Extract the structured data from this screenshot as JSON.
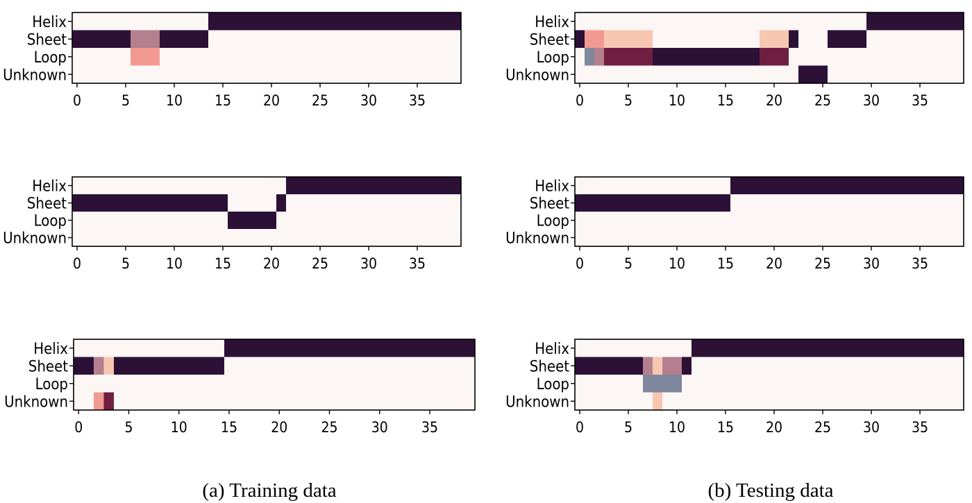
{
  "captions": {
    "left": "(a) Training data",
    "right": "(b) Testing data"
  },
  "colors": {
    "dark": "#2c1036",
    "light": "#fcf6f5",
    "salmon": "#f29a92",
    "peach": "#f7c7b2",
    "mauve": "#b47f8f",
    "slate": "#7f879c",
    "wine": "#701f43",
    "axis": "#000000"
  },
  "chart_data": [
    {
      "type": "heatmap",
      "group": "(a) Training data",
      "ylabels": [
        "Helix",
        "Sheet",
        "Loop",
        "Unknown"
      ],
      "xticks": [
        0,
        5,
        10,
        15,
        20,
        25,
        30,
        35
      ],
      "xlim": [
        -0.5,
        39.5
      ],
      "n_positions": 40,
      "cells": {
        "Helix": [
          [
            0,
            13,
            "light"
          ],
          [
            14,
            39,
            "dark"
          ]
        ],
        "Sheet": [
          [
            0,
            5,
            "dark"
          ],
          [
            6,
            8,
            "mauve"
          ],
          [
            9,
            13,
            "dark"
          ],
          [
            14,
            39,
            "light"
          ]
        ],
        "Loop": [
          [
            0,
            5,
            "light"
          ],
          [
            6,
            8,
            "salmon"
          ],
          [
            9,
            39,
            "light"
          ]
        ],
        "Unknown": [
          [
            0,
            39,
            "light"
          ]
        ]
      }
    },
    {
      "type": "heatmap",
      "group": "(b) Testing data",
      "ylabels": [
        "Helix",
        "Sheet",
        "Loop",
        "Unknown"
      ],
      "xticks": [
        0,
        5,
        10,
        15,
        20,
        25,
        30,
        35
      ],
      "xlim": [
        -0.5,
        39.5
      ],
      "n_positions": 40,
      "cells": {
        "Helix": [
          [
            0,
            29,
            "light"
          ],
          [
            30,
            39,
            "dark"
          ]
        ],
        "Sheet": [
          [
            0,
            0,
            "dark"
          ],
          [
            1,
            1,
            "salmon"
          ],
          [
            2,
            2,
            "salmon"
          ],
          [
            3,
            7,
            "peach"
          ],
          [
            8,
            18,
            "light"
          ],
          [
            19,
            21,
            "peach"
          ],
          [
            22,
            22,
            "dark"
          ],
          [
            23,
            25,
            "light"
          ],
          [
            26,
            29,
            "dark"
          ],
          [
            30,
            39,
            "light"
          ]
        ],
        "Loop": [
          [
            0,
            0,
            "light"
          ],
          [
            1,
            1,
            "slate"
          ],
          [
            2,
            2,
            "mauve"
          ],
          [
            3,
            7,
            "wine"
          ],
          [
            8,
            18,
            "dark"
          ],
          [
            19,
            21,
            "wine"
          ],
          [
            22,
            39,
            "light"
          ]
        ],
        "Unknown": [
          [
            0,
            22,
            "light"
          ],
          [
            23,
            25,
            "dark"
          ],
          [
            26,
            39,
            "light"
          ]
        ]
      }
    },
    {
      "type": "heatmap",
      "group": "(a) Training data",
      "ylabels": [
        "Helix",
        "Sheet",
        "Loop",
        "Unknown"
      ],
      "xticks": [
        0,
        5,
        10,
        15,
        20,
        25,
        30,
        35
      ],
      "xlim": [
        -0.5,
        39.5
      ],
      "n_positions": 40,
      "cells": {
        "Helix": [
          [
            0,
            21,
            "light"
          ],
          [
            22,
            39,
            "dark"
          ]
        ],
        "Sheet": [
          [
            0,
            15,
            "dark"
          ],
          [
            16,
            20,
            "light"
          ],
          [
            21,
            21,
            "dark"
          ],
          [
            22,
            39,
            "light"
          ]
        ],
        "Loop": [
          [
            0,
            15,
            "light"
          ],
          [
            16,
            20,
            "dark"
          ],
          [
            21,
            39,
            "light"
          ]
        ],
        "Unknown": [
          [
            0,
            39,
            "light"
          ]
        ]
      }
    },
    {
      "type": "heatmap",
      "group": "(b) Testing data",
      "ylabels": [
        "Helix",
        "Sheet",
        "Loop",
        "Unknown"
      ],
      "xticks": [
        0,
        5,
        10,
        15,
        20,
        25,
        30,
        35
      ],
      "xlim": [
        -0.5,
        39.5
      ],
      "n_positions": 40,
      "cells": {
        "Helix": [
          [
            0,
            15,
            "light"
          ],
          [
            16,
            39,
            "dark"
          ]
        ],
        "Sheet": [
          [
            0,
            15,
            "dark"
          ],
          [
            16,
            39,
            "light"
          ]
        ],
        "Loop": [
          [
            0,
            39,
            "light"
          ]
        ],
        "Unknown": [
          [
            0,
            39,
            "light"
          ]
        ]
      }
    },
    {
      "type": "heatmap",
      "group": "(a) Training data",
      "ylabels": [
        "Helix",
        "Sheet",
        "Loop",
        "Unknown"
      ],
      "xticks": [
        0,
        5,
        10,
        15,
        20,
        25,
        30,
        35
      ],
      "xlim": [
        -0.5,
        39.5
      ],
      "n_positions": 40,
      "cells": {
        "Helix": [
          [
            0,
            14,
            "light"
          ],
          [
            15,
            39,
            "dark"
          ]
        ],
        "Sheet": [
          [
            0,
            1,
            "dark"
          ],
          [
            2,
            2,
            "mauve"
          ],
          [
            3,
            3,
            "peach"
          ],
          [
            4,
            14,
            "dark"
          ],
          [
            15,
            39,
            "light"
          ]
        ],
        "Loop": [
          [
            0,
            39,
            "light"
          ]
        ],
        "Unknown": [
          [
            0,
            1,
            "light"
          ],
          [
            2,
            2,
            "salmon"
          ],
          [
            3,
            3,
            "wine"
          ],
          [
            4,
            39,
            "light"
          ]
        ]
      }
    },
    {
      "type": "heatmap",
      "group": "(b) Testing data",
      "ylabels": [
        "Helix",
        "Sheet",
        "Loop",
        "Unknown"
      ],
      "xticks": [
        0,
        5,
        10,
        15,
        20,
        25,
        30,
        35
      ],
      "xlim": [
        -0.5,
        39.5
      ],
      "n_positions": 40,
      "cells": {
        "Helix": [
          [
            0,
            11,
            "light"
          ],
          [
            12,
            39,
            "dark"
          ]
        ],
        "Sheet": [
          [
            0,
            6,
            "dark"
          ],
          [
            7,
            7,
            "mauve"
          ],
          [
            8,
            8,
            "peach"
          ],
          [
            9,
            10,
            "mauve"
          ],
          [
            11,
            11,
            "dark"
          ],
          [
            12,
            39,
            "light"
          ]
        ],
        "Loop": [
          [
            0,
            6,
            "light"
          ],
          [
            7,
            10,
            "slate"
          ],
          [
            11,
            39,
            "light"
          ]
        ],
        "Unknown": [
          [
            0,
            7,
            "light"
          ],
          [
            8,
            8,
            "peach"
          ],
          [
            9,
            39,
            "light"
          ]
        ]
      }
    }
  ]
}
